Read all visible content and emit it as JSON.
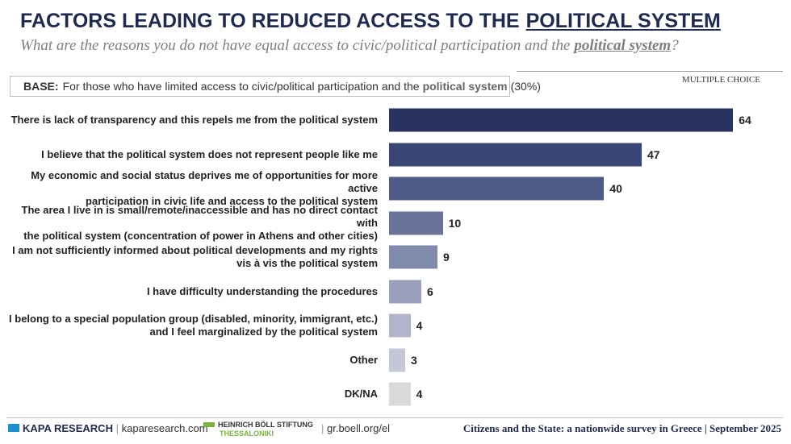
{
  "header": {
    "title": [
      "FACTORS LEADING TO REDUCED ACCESS TO THE",
      "POLITICAL SYSTEM"
    ],
    "subtitle": [
      "What are the reasons you do not have equal access to civic/political participation and the",
      "political system",
      "?"
    ],
    "base": [
      "BASE:",
      "For those who have limited access to civic/political participation and the",
      "political system",
      "(30%)"
    ],
    "note": "MULTIPLE CHOICE"
  },
  "chart_data": {
    "type": "bar",
    "orientation": "horizontal",
    "categories": [
      "There is lack of transparency and this repels me from the political system",
      "I believe that the political system does not represent people like me",
      "My economic and social status deprives me of opportunities for more active\nparticipation in civic life and access to the political system",
      "The area I live in is small/remote/inaccessible and has no direct contact with\nthe political system (concentration of power in Athens and other cities)",
      "I am not sufficiently informed about political developments and my rights\nvis à vis  the political system",
      "I have difficulty understanding the procedures",
      "I belong to a special population group (disabled, minority, immigrant, etc.)\nand I feel marginalized by the political system",
      "Other",
      "DK/NA"
    ],
    "values": [
      64,
      47,
      40,
      10,
      9,
      6,
      4,
      3,
      4
    ],
    "colors": [
      "#29335f",
      "#3a4577",
      "#4f5b87",
      "#6a7499",
      "#808aaa",
      "#9aa0bc",
      "#b1b5ca",
      "#c4c7d6",
      "#d9d9d9"
    ]
  },
  "footer": {
    "brand": "KAPA RESEARCH",
    "site1": "kaparesearch.com",
    "foundation": "HEINRICH BÖLL STIFTUNG",
    "city": "THESSALONIKI",
    "site2": "gr.boell.org/el",
    "survey": "Citizens and the State: a nationwide survey in Greece",
    "date": "September 2025"
  }
}
